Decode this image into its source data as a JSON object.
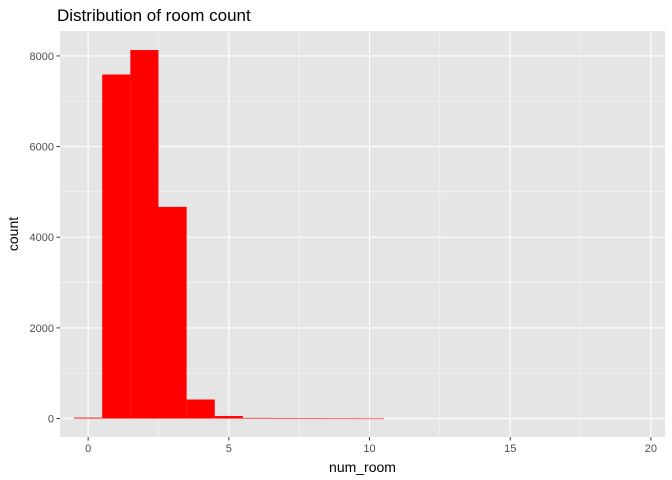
{
  "chart_data": {
    "type": "bar",
    "title": "Distribution of room count",
    "xlabel": "num_room",
    "ylabel": "count",
    "xlim": [
      -1,
      20.5
    ],
    "ylim": [
      -407,
      8550
    ],
    "x_ticks": [
      0,
      5,
      10,
      15,
      20
    ],
    "x_tick_labels": [
      "0",
      "5",
      "10",
      "15",
      "20"
    ],
    "y_ticks": [
      0,
      2000,
      4000,
      6000,
      8000
    ],
    "y_tick_labels": [
      "0",
      "2000",
      "4000",
      "6000",
      "8000"
    ],
    "bin_width": 1,
    "bins": [
      {
        "center": 0,
        "count": 20
      },
      {
        "center": 1,
        "count": 7590
      },
      {
        "center": 2,
        "count": 8130
      },
      {
        "center": 3,
        "count": 4670
      },
      {
        "center": 4,
        "count": 420
      },
      {
        "center": 5,
        "count": 55
      },
      {
        "center": 6,
        "count": 15
      },
      {
        "center": 7,
        "count": 5
      },
      {
        "center": 8,
        "count": 3
      },
      {
        "center": 9,
        "count": 2
      },
      {
        "center": 10,
        "count": 1
      }
    ],
    "bar_color": "#ff0000",
    "panel_background": "#e5e5e5",
    "grid_color": "#ffffff",
    "grid": true,
    "legend": "none"
  }
}
